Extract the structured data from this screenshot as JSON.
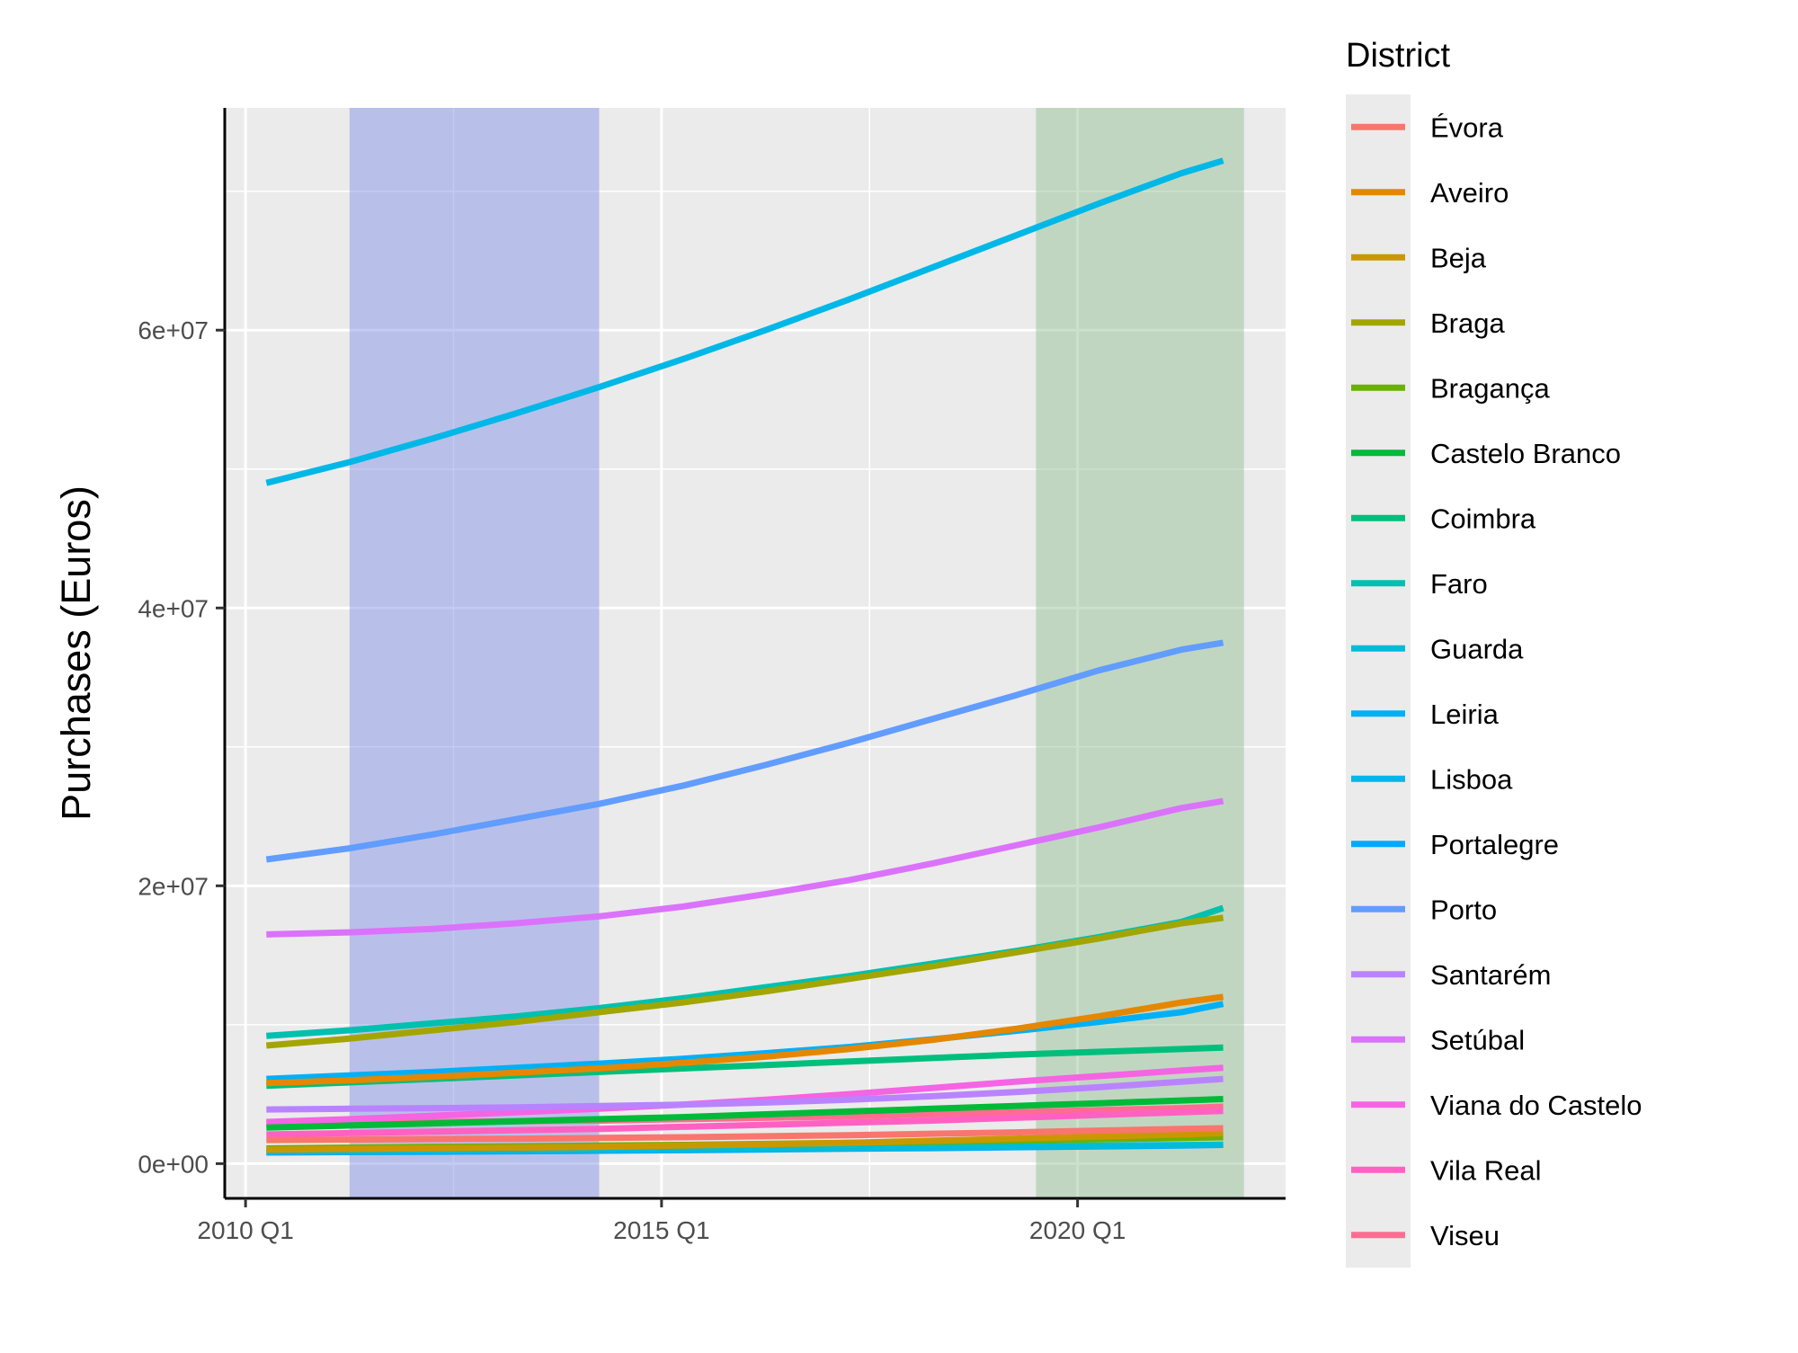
{
  "chart_data": {
    "type": "line",
    "title": "",
    "xlabel": "",
    "ylabel": "Purchases (Euros)",
    "x_axis": {
      "type": "quarterly-date",
      "range": [
        "2009 Q4",
        "2022 Q3"
      ],
      "ticks": [
        "2010 Q1",
        "2015 Q1",
        "2020 Q1"
      ]
    },
    "y_axis": {
      "range": [
        -2500000,
        76000000
      ],
      "ticks": [
        0,
        20000000,
        40000000,
        60000000
      ],
      "tick_labels": [
        "0e+00",
        "2e+07",
        "4e+07",
        "6e+07"
      ]
    },
    "grid": true,
    "panel_background": "#ebebeb",
    "shaded_regions": [
      {
        "start": "2011 Q2",
        "end": "2014 Q2",
        "color": "#7b8ce6"
      },
      {
        "start": "2019 Q3",
        "end": "2022 Q1",
        "color": "#8fbc8f"
      }
    ],
    "x": [
      "2010 Q2",
      "2011 Q2",
      "2012 Q2",
      "2013 Q2",
      "2014 Q2",
      "2015 Q2",
      "2016 Q2",
      "2017 Q2",
      "2018 Q2",
      "2019 Q2",
      "2020 Q2",
      "2021 Q2",
      "2021 Q4"
    ],
    "legend": {
      "title": "District",
      "position": "right"
    },
    "series": [
      {
        "name": "Évora",
        "color": "#F8766D",
        "values": [
          1700000,
          1730000,
          1770000,
          1800000,
          1850000,
          1900000,
          1970000,
          2050000,
          2150000,
          2250000,
          2380000,
          2500000,
          2550000
        ]
      },
      {
        "name": "Aveiro",
        "color": "#E58700",
        "values": [
          5800000,
          6000000,
          6250000,
          6550000,
          6850000,
          7250000,
          7700000,
          8250000,
          8900000,
          9700000,
          10600000,
          11600000,
          12000000
        ]
      },
      {
        "name": "Beja",
        "color": "#C99800",
        "values": [
          1000000,
          1050000,
          1100000,
          1150000,
          1200000,
          1300000,
          1400000,
          1500000,
          1650000,
          1800000,
          1950000,
          2100000,
          2200000
        ]
      },
      {
        "name": "Braga",
        "color": "#A3A500",
        "values": [
          8500000,
          9000000,
          9600000,
          10200000,
          10900000,
          11600000,
          12400000,
          13300000,
          14200000,
          15200000,
          16200000,
          17300000,
          17700000
        ]
      },
      {
        "name": "Bragança",
        "color": "#6BB100",
        "values": [
          1100000,
          1150000,
          1200000,
          1250000,
          1300000,
          1350000,
          1420000,
          1500000,
          1580000,
          1660000,
          1750000,
          1840000,
          1900000
        ]
      },
      {
        "name": "Castelo Branco",
        "color": "#00BA38",
        "values": [
          2600000,
          2750000,
          2900000,
          3050000,
          3200000,
          3350000,
          3550000,
          3750000,
          3950000,
          4150000,
          4350000,
          4550000,
          4650000
        ]
      },
      {
        "name": "Coimbra",
        "color": "#00BF7D",
        "values": [
          5600000,
          5850000,
          6100000,
          6350000,
          6600000,
          6850000,
          7100000,
          7350000,
          7600000,
          7850000,
          8050000,
          8250000,
          8350000
        ]
      },
      {
        "name": "Faro",
        "color": "#00C0AF",
        "values": [
          9200000,
          9600000,
          10100000,
          10600000,
          11200000,
          11900000,
          12700000,
          13500000,
          14400000,
          15300000,
          16300000,
          17400000,
          18400000
        ]
      },
      {
        "name": "Guarda",
        "color": "#00BCD8",
        "values": [
          900000,
          930000,
          960000,
          990000,
          1020000,
          1060000,
          1100000,
          1140000,
          1190000,
          1240000,
          1290000,
          1340000,
          1370000
        ]
      },
      {
        "name": "Leiria",
        "color": "#00B0F6",
        "values": [
          6100000,
          6350000,
          6600000,
          6900000,
          7200000,
          7550000,
          7950000,
          8400000,
          8950000,
          9550000,
          10200000,
          10900000,
          11500000
        ]
      },
      {
        "name": "Lisboa",
        "color": "#00B8E7",
        "values": [
          49000000,
          50500000,
          52200000,
          54000000,
          55900000,
          57900000,
          60000000,
          62200000,
          64500000,
          66800000,
          69100000,
          71300000,
          72200000
        ]
      },
      {
        "name": "Portalegre",
        "color": "#00A9FF",
        "values": [
          800000,
          830000,
          860000,
          890000,
          930000,
          970000,
          1020000,
          1070000,
          1120000,
          1180000,
          1240000,
          1300000,
          1350000
        ]
      },
      {
        "name": "Porto",
        "color": "#619CFF",
        "values": [
          21900000,
          22700000,
          23700000,
          24800000,
          25900000,
          27200000,
          28700000,
          30300000,
          32000000,
          33700000,
          35500000,
          37000000,
          37500000
        ]
      },
      {
        "name": "Santarém",
        "color": "#B983FF",
        "values": [
          3900000,
          3950000,
          4000000,
          4050000,
          4150000,
          4250000,
          4400000,
          4600000,
          4850000,
          5150000,
          5500000,
          5900000,
          6100000
        ]
      },
      {
        "name": "Setúbal",
        "color": "#DB72FB",
        "values": [
          16500000,
          16650000,
          16900000,
          17300000,
          17800000,
          18500000,
          19400000,
          20400000,
          21600000,
          22900000,
          24200000,
          25600000,
          26100000
        ]
      },
      {
        "name": "Viana do Castelo",
        "color": "#F564E3",
        "values": [
          3000000,
          3200000,
          3450000,
          3700000,
          3950000,
          4250000,
          4600000,
          5000000,
          5450000,
          5900000,
          6300000,
          6700000,
          6900000
        ]
      },
      {
        "name": "Vila Real",
        "color": "#FF61C3",
        "values": [
          2100000,
          2200000,
          2300000,
          2400000,
          2500000,
          2650000,
          2800000,
          2950000,
          3100000,
          3300000,
          3500000,
          3700000,
          3800000
        ]
      },
      {
        "name": "Viseu",
        "color": "#FF6C91",
        "values": [
          2900000,
          2950000,
          3000000,
          3050000,
          3100000,
          3200000,
          3300000,
          3400000,
          3550000,
          3700000,
          3850000,
          4000000,
          4100000
        ]
      }
    ]
  }
}
